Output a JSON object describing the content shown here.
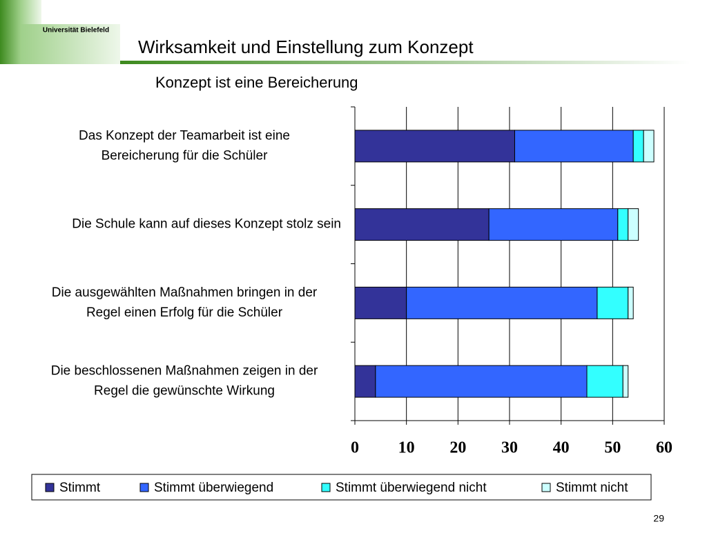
{
  "slide": {
    "logo": "Universität Bielefeld",
    "title": "Wirksamkeit und Einstellung zum Konzept",
    "page_number": 29
  },
  "chart_data": {
    "type": "stacked-barh",
    "title": "Konzept ist eine Bereicherung",
    "categories": [
      [
        "Das Konzept der Teamarbeit ist eine",
        "Bereicherung für die Schüler"
      ],
      [
        "Die Schule kann auf dieses Konzept stolz sein"
      ],
      [
        "Die ausgewählten Maßnahmen bringen in der",
        "Regel einen Erfolg für die Schüler"
      ],
      [
        "Die beschlossenen Maßnahmen zeigen in der",
        "Regel die gewünschte Wirkung"
      ]
    ],
    "series": [
      {
        "name": "Stimmt",
        "color": "#333399",
        "values": [
          31,
          26,
          10,
          4
        ]
      },
      {
        "name": "Stimmt überwiegend",
        "color": "#3366ff",
        "values": [
          23,
          25,
          37,
          41
        ]
      },
      {
        "name": "Stimmt überwiegend nicht",
        "color": "#33ffff",
        "values": [
          2,
          2,
          6,
          7
        ]
      },
      {
        "name": "Stimmt nicht",
        "color": "#ccffff",
        "values": [
          2,
          2,
          1,
          1
        ]
      }
    ],
    "xlim": [
      0,
      60
    ],
    "xticks": [
      0,
      10,
      20,
      30,
      40,
      50,
      60
    ],
    "grid": true
  }
}
